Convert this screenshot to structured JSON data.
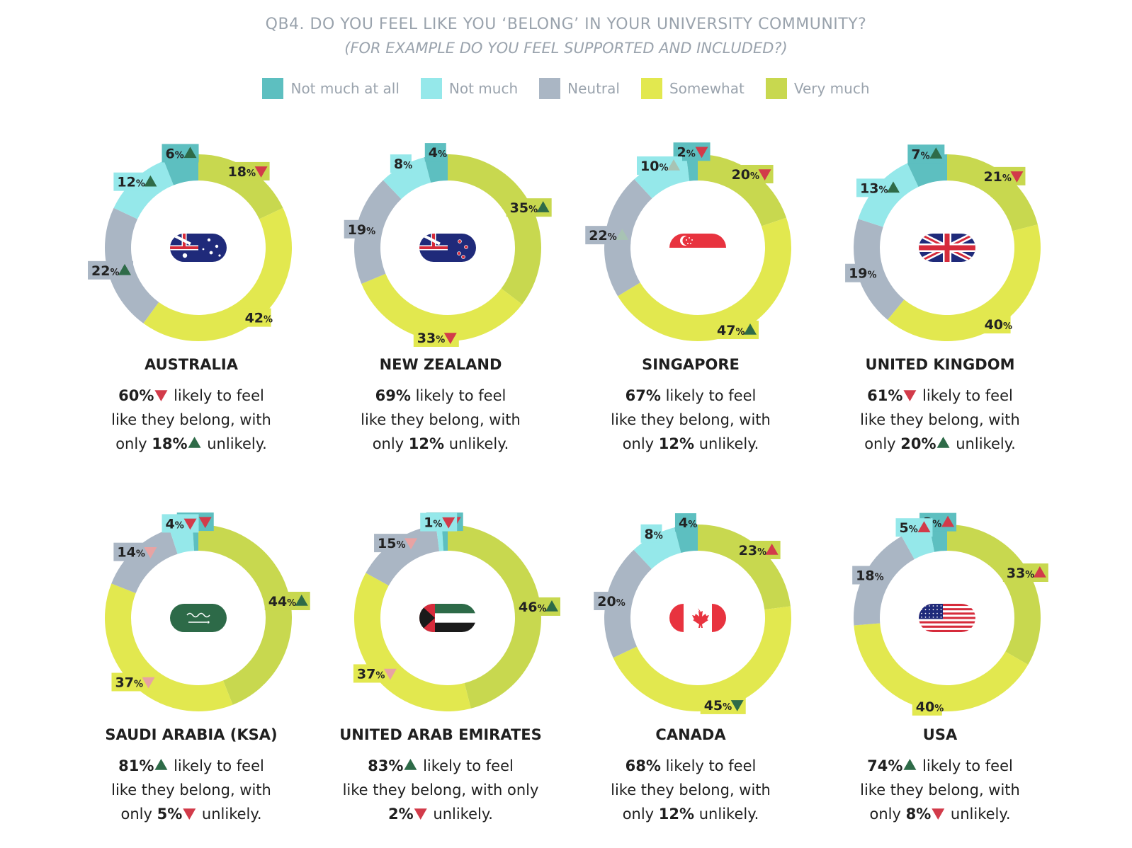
{
  "title": "QB4. DO YOU FEEL LIKE YOU ‘BELONG’ IN YOUR UNIVERSITY COMMUNITY?",
  "subtitle": "(FOR EXAMPLE DO YOU FEEL SUPPORTED AND INCLUDED?)",
  "colors": {
    "not_much_at_all": "#5dbfc0",
    "not_much": "#95e8ea",
    "neutral": "#aab6c4",
    "somewhat": "#e2e84f",
    "very_much": "#c8d84f",
    "up_strong": "#2e6b48",
    "down_strong": "#d23b4a",
    "up_light": "#a8c3b4",
    "down_light": "#e8a3a3"
  },
  "legend": [
    {
      "label": "Not much at all",
      "color": "#5dbfc0"
    },
    {
      "label": "Not much",
      "color": "#95e8ea"
    },
    {
      "label": "Neutral",
      "color": "#aab6c4"
    },
    {
      "label": "Somewhat",
      "color": "#e2e84f"
    },
    {
      "label": "Very much",
      "color": "#c8d84f"
    }
  ],
  "chart_data": [
    {
      "type": "pie",
      "donut": true,
      "country": "AUSTRALIA",
      "flag": "australia-flag",
      "categories": [
        "Not much at all",
        "Not much",
        "Neutral",
        "Somewhat",
        "Very much"
      ],
      "values": [
        6,
        12,
        22,
        42,
        18
      ],
      "labels": [
        "6",
        "12",
        "22",
        "42",
        "18"
      ],
      "trends": [
        "up",
        "up",
        "up",
        "none",
        "down"
      ],
      "desc": [
        [
          {
            "t": "60%",
            "b": true,
            "tri": "down"
          },
          {
            "t": " likely to feel"
          }
        ],
        [
          {
            "t": "like they belong, with"
          }
        ],
        [
          {
            "t": "only "
          },
          {
            "t": "18%",
            "b": true,
            "tri": "up"
          },
          {
            "t": " unlikely."
          }
        ]
      ]
    },
    {
      "type": "pie",
      "donut": true,
      "country": "NEW ZEALAND",
      "flag": "new-zealand-flag",
      "categories": [
        "Not much at all",
        "Not much",
        "Neutral",
        "Somewhat",
        "Very much"
      ],
      "values": [
        4,
        8,
        19,
        33,
        35
      ],
      "labels": [
        "4",
        "8",
        "19",
        "33",
        "35"
      ],
      "trends": [
        "none",
        "none",
        "none",
        "down",
        "up"
      ],
      "desc": [
        [
          {
            "t": "69%",
            "b": true
          },
          {
            "t": " likely to feel"
          }
        ],
        [
          {
            "t": "like they belong, with"
          }
        ],
        [
          {
            "t": "only "
          },
          {
            "t": "12%",
            "b": true
          },
          {
            "t": " unlikely."
          }
        ]
      ]
    },
    {
      "type": "pie",
      "donut": true,
      "country": "SINGAPORE",
      "flag": "singapore-flag",
      "categories": [
        "Not much at all",
        "Not much",
        "Neutral",
        "Somewhat",
        "Very much"
      ],
      "values": [
        2,
        10,
        22,
        47,
        20
      ],
      "labels": [
        "2",
        "10",
        "22",
        "47",
        "20"
      ],
      "trends": [
        "down",
        "up_light",
        "up_light",
        "up",
        "down"
      ],
      "desc": [
        [
          {
            "t": "67%",
            "b": true
          },
          {
            "t": " likely to feel"
          }
        ],
        [
          {
            "t": "like they belong, with"
          }
        ],
        [
          {
            "t": "only "
          },
          {
            "t": "12%",
            "b": true
          },
          {
            "t": " unlikely."
          }
        ]
      ]
    },
    {
      "type": "pie",
      "donut": true,
      "country": "UNITED KINGDOM",
      "flag": "uk-flag",
      "categories": [
        "Not much at all",
        "Not much",
        "Neutral",
        "Somewhat",
        "Very much"
      ],
      "values": [
        7,
        13,
        19,
        40,
        21
      ],
      "labels": [
        "7",
        "13",
        "19",
        "40",
        "21"
      ],
      "trends": [
        "up",
        "up",
        "none",
        "none",
        "down"
      ],
      "desc": [
        [
          {
            "t": "61%",
            "b": true,
            "tri": "down"
          },
          {
            "t": " likely to feel"
          }
        ],
        [
          {
            "t": "like they belong, with"
          }
        ],
        [
          {
            "t": "only "
          },
          {
            "t": "20%",
            "b": true,
            "tri": "up"
          },
          {
            "t": " unlikely."
          }
        ]
      ]
    },
    {
      "type": "pie",
      "donut": true,
      "country": "SAUDI ARABIA (KSA)",
      "flag": "saudi-arabia-flag",
      "categories": [
        "Not much at all",
        "Not much",
        "Neutral",
        "Somewhat",
        "Very much"
      ],
      "values": [
        1,
        4,
        14,
        37,
        44
      ],
      "labels": [
        "1",
        "4",
        "14",
        "37",
        "44"
      ],
      "trends": [
        "down",
        "down",
        "down_light",
        "down_light",
        "up"
      ],
      "desc": [
        [
          {
            "t": "81%",
            "b": true,
            "tri": "up"
          },
          {
            "t": " likely to feel"
          }
        ],
        [
          {
            "t": "like they belong, with"
          }
        ],
        [
          {
            "t": "only "
          },
          {
            "t": "5%",
            "b": true,
            "tri": "down"
          },
          {
            "t": " unlikely."
          }
        ]
      ]
    },
    {
      "type": "pie",
      "donut": true,
      "country": "UNITED ARAB EMIRATES",
      "flag": "uae-flag",
      "categories": [
        "Not much at all",
        "Not much",
        "Neutral",
        "Somewhat",
        "Very much"
      ],
      "values": [
        1,
        1,
        15,
        37,
        46
      ],
      "labels": [
        "1",
        "1",
        "15",
        "37",
        "46"
      ],
      "trends": [
        "down",
        "down",
        "down_light",
        "down_light",
        "up"
      ],
      "desc": [
        [
          {
            "t": "83%",
            "b": true,
            "tri": "up"
          },
          {
            "t": " likely to feel"
          }
        ],
        [
          {
            "t": "like they belong, with only"
          }
        ],
        [
          {
            "t": "2%",
            "b": true,
            "tri": "down"
          },
          {
            "t": " unlikely."
          }
        ]
      ]
    },
    {
      "type": "pie",
      "donut": true,
      "country": "CANADA",
      "flag": "canada-flag",
      "categories": [
        "Not much at all",
        "Not much",
        "Neutral",
        "Somewhat",
        "Very much"
      ],
      "values": [
        4,
        8,
        20,
        45,
        23
      ],
      "labels": [
        "4",
        "8",
        "20",
        "45",
        "23"
      ],
      "trends": [
        "none",
        "none",
        "none",
        "down_green",
        "up_red"
      ],
      "desc": [
        [
          {
            "t": "68%",
            "b": true
          },
          {
            "t": " likely to feel"
          }
        ],
        [
          {
            "t": "like they belong, with"
          }
        ],
        [
          {
            "t": "only "
          },
          {
            "t": "12%",
            "b": true
          },
          {
            "t": " unlikely."
          }
        ]
      ]
    },
    {
      "type": "pie",
      "donut": true,
      "country": "USA",
      "flag": "usa-flag",
      "categories": [
        "Not much at all",
        "Not much",
        "Neutral",
        "Somewhat",
        "Very much"
      ],
      "values": [
        3,
        5,
        18,
        40,
        33
      ],
      "labels": [
        "3",
        "5",
        "18",
        "40",
        "33"
      ],
      "trends": [
        "up_red",
        "up_red",
        "none",
        "none",
        "up_red"
      ],
      "desc": [
        [
          {
            "t": "74%",
            "b": true,
            "tri": "up"
          },
          {
            "t": " likely to feel"
          }
        ],
        [
          {
            "t": "like they belong, with"
          }
        ],
        [
          {
            "t": "only "
          },
          {
            "t": "8%",
            "b": true,
            "tri": "down"
          },
          {
            "t": " unlikely."
          }
        ]
      ]
    }
  ]
}
